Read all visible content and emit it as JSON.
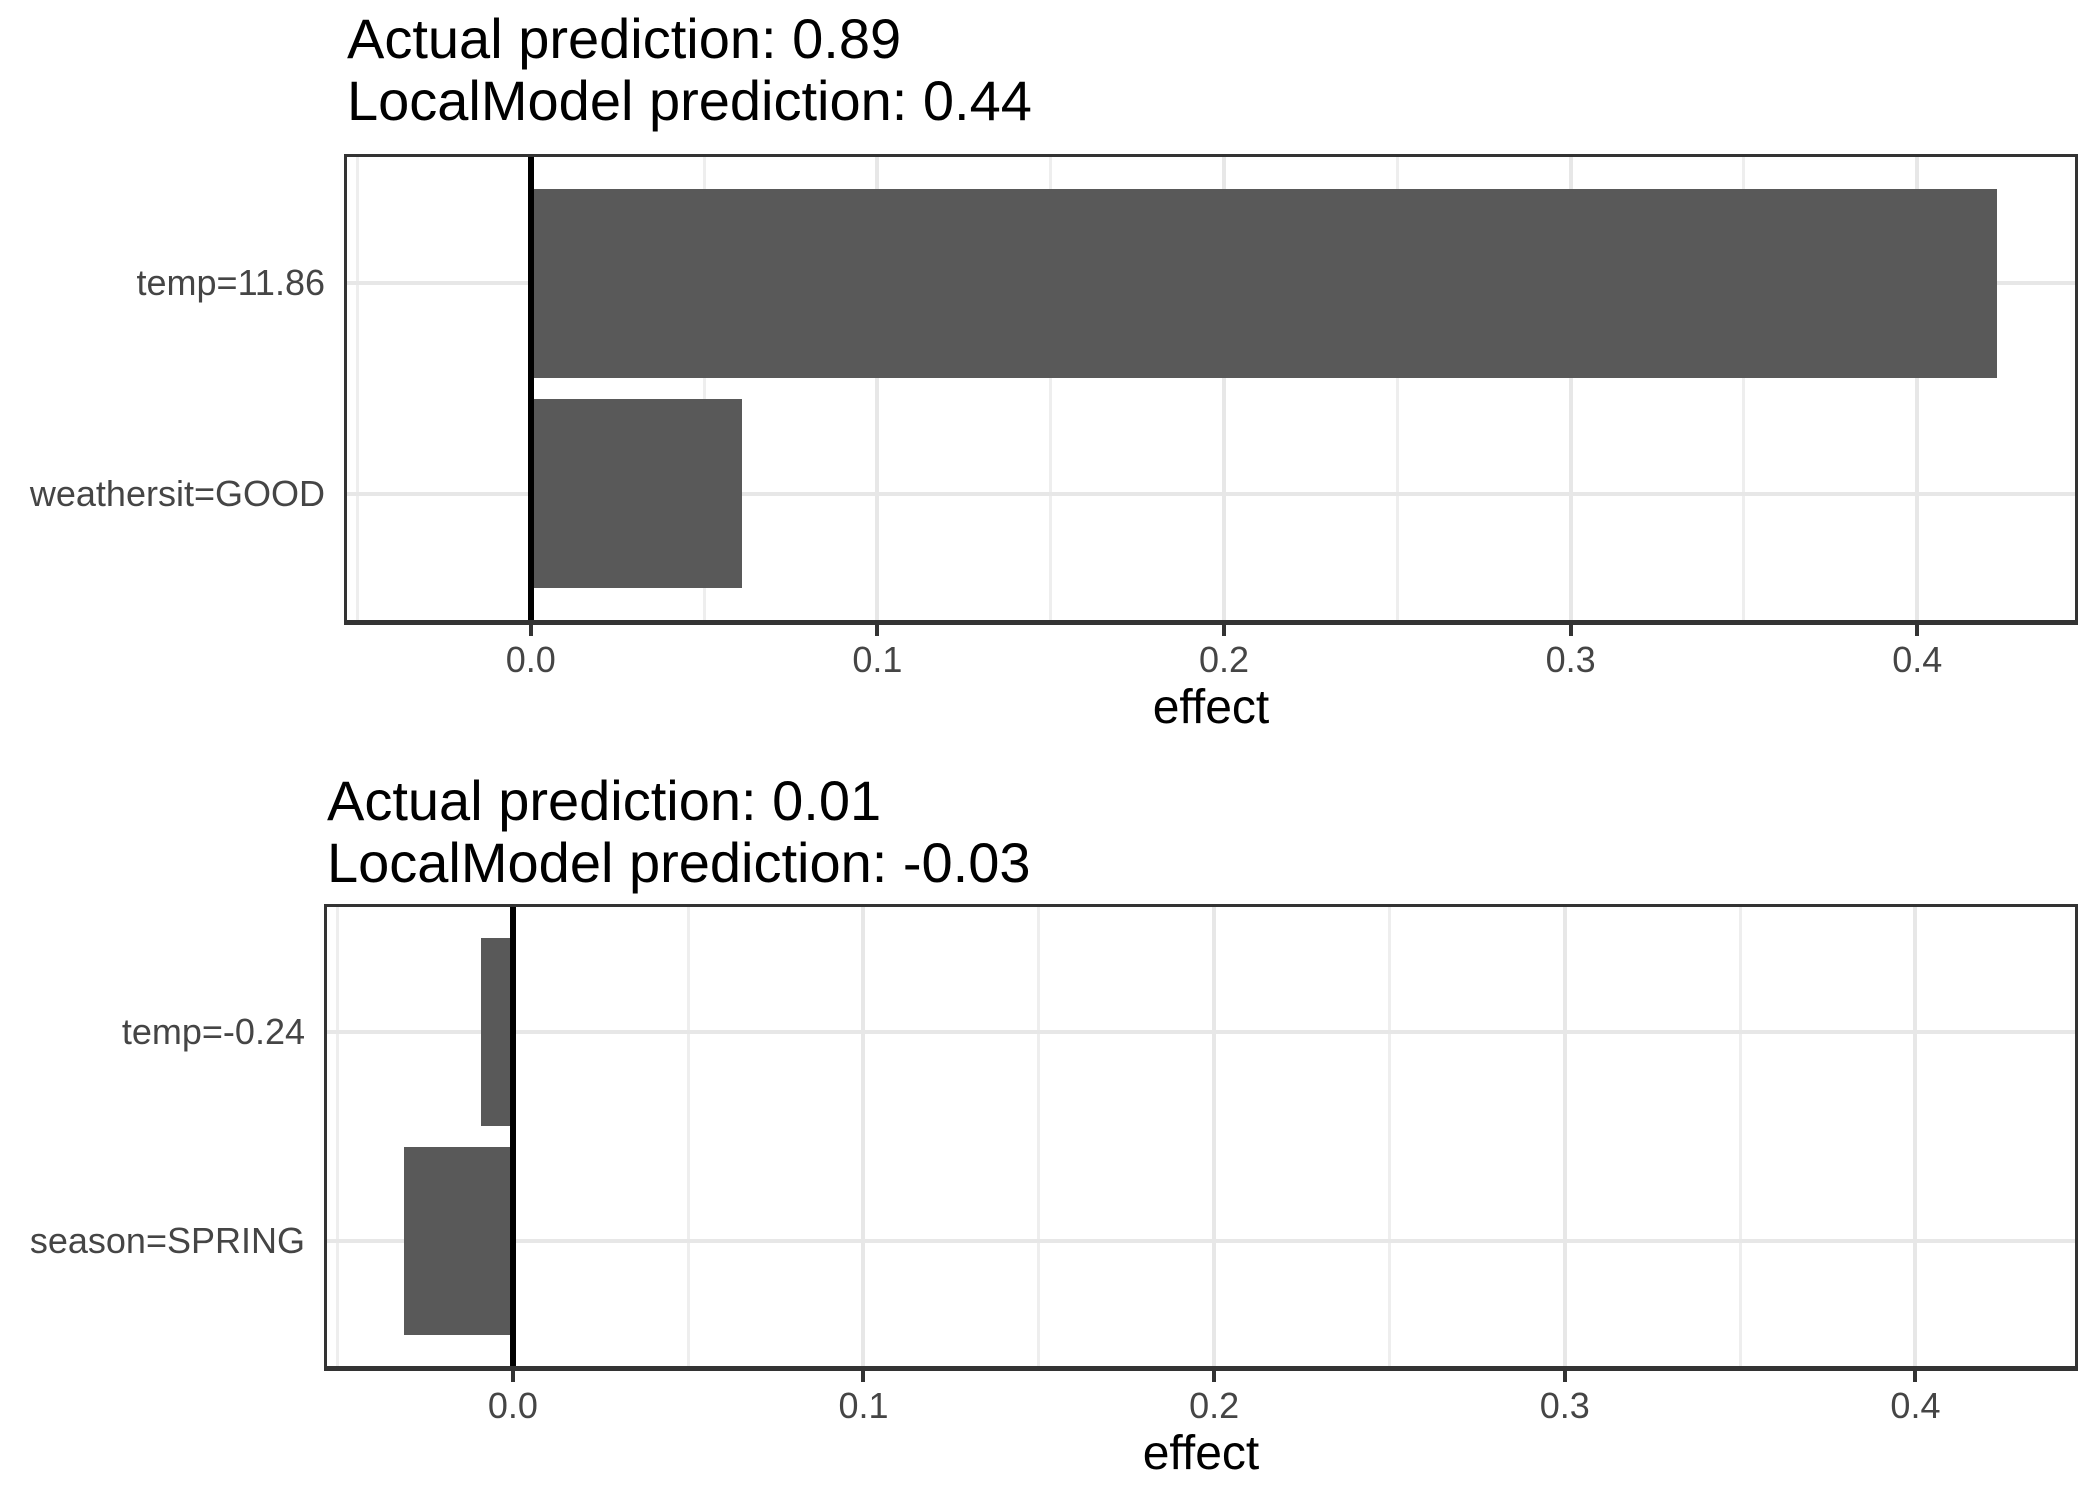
{
  "style": {
    "background": "#ffffff",
    "bar_fill": "#595959",
    "panel_border": "#333333",
    "zero_line": "#000000",
    "grid_major": "#e7e7e7",
    "grid_minor": "#eeeeee",
    "axis_text_color": "#454545",
    "axis_line_color": "#333333",
    "title_color": "#000000"
  },
  "chart_data": [
    {
      "type": "bar",
      "orientation": "horizontal",
      "title_lines": [
        "Actual prediction: 0.89",
        "LocalModel prediction: 0.44"
      ],
      "actual_prediction": 0.89,
      "local_model_prediction": 0.44,
      "categories": [
        "temp=11.86",
        "weathersit=GOOD"
      ],
      "values": [
        0.423,
        0.061
      ],
      "xlabel": "effect",
      "xlim": [
        -0.053,
        0.4455
      ],
      "xticks": [
        0,
        0.1,
        0.2,
        0.3,
        0.4
      ],
      "xtick_labels": [
        "0.0",
        "0.1",
        "0.2",
        "0.3",
        "0.4"
      ],
      "minor_xticks": [
        -0.05,
        0.05,
        0.15,
        0.25,
        0.35
      ],
      "grid": "on",
      "legend": "none",
      "zero_line_at": 0
    },
    {
      "type": "bar",
      "orientation": "horizontal",
      "title_lines": [
        "Actual prediction: 0.01",
        "LocalModel prediction: -0.03"
      ],
      "actual_prediction": 0.01,
      "local_model_prediction": -0.03,
      "categories": [
        "temp=-0.24",
        "season=SPRING"
      ],
      "values": [
        -0.009,
        -0.031
      ],
      "xlabel": "effect",
      "xlim": [
        -0.053,
        0.4455
      ],
      "xticks": [
        0,
        0.1,
        0.2,
        0.3,
        0.4
      ],
      "xtick_labels": [
        "0.0",
        "0.1",
        "0.2",
        "0.3",
        "0.4"
      ],
      "minor_xticks": [
        -0.05,
        0.05,
        0.15,
        0.25,
        0.35
      ],
      "grid": "on",
      "legend": "none",
      "zero_line_at": 0
    }
  ]
}
